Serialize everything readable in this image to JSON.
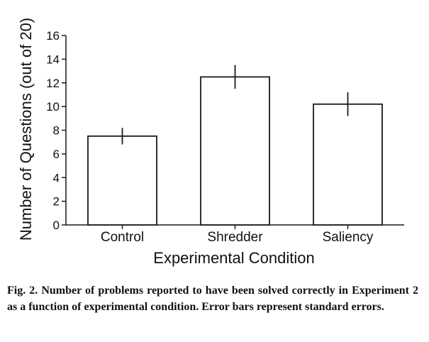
{
  "chart_data": {
    "type": "bar",
    "categories": [
      "Control",
      "Shredder",
      "Saliency"
    ],
    "values": [
      7.5,
      12.5,
      10.2
    ],
    "error": [
      0.7,
      1.0,
      1.0
    ],
    "xlabel": "Experimental Condition",
    "ylabel": "Number of Questions (out of 20)",
    "ylim": [
      0,
      16
    ],
    "yticks": [
      0,
      2,
      4,
      6,
      8,
      10,
      12,
      14,
      16
    ],
    "grid": false,
    "bar_fill": "#ffffff",
    "bar_stroke": "#1a1a1a"
  },
  "caption": {
    "label": "Fig. 2.",
    "text": "Number of problems reported to have been solved correctly in Experiment 2 as a function of experimental condition. Error bars represent standard errors."
  }
}
